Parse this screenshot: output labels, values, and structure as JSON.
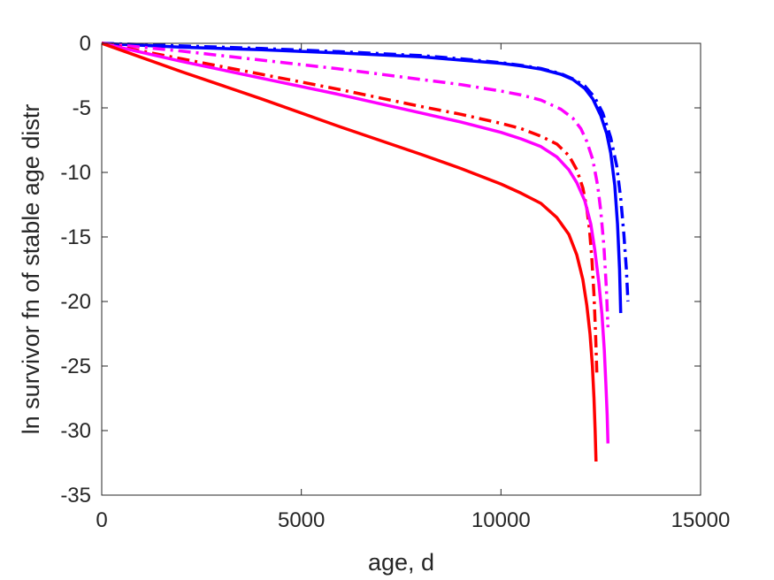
{
  "chart_data": {
    "type": "line",
    "title": "",
    "xlabel": "age, d",
    "ylabel": "ln survivor fn of stable age distr",
    "xlim": [
      0,
      15000
    ],
    "ylim": [
      -35,
      0
    ],
    "xticks": [
      0,
      5000,
      10000,
      15000
    ],
    "yticks": [
      0,
      -5,
      -10,
      -15,
      -20,
      -25,
      -30,
      -35
    ],
    "grid": false,
    "legend": "none",
    "series": [
      {
        "color": "#0000ff",
        "dash": "solid",
        "x": [
          0,
          2000,
          4000,
          6000,
          8000,
          9000,
          10000,
          10500,
          11000,
          11500,
          11800,
          12100,
          12300,
          12500,
          12650,
          12750,
          12850,
          12920,
          12970,
          13000
        ],
        "y": [
          0,
          -0.3,
          -0.5,
          -0.75,
          -1.05,
          -1.3,
          -1.55,
          -1.75,
          -2.0,
          -2.4,
          -2.8,
          -3.5,
          -4.3,
          -5.6,
          -7.0,
          -8.5,
          -11.0,
          -14.0,
          -17.5,
          -20.9
        ]
      },
      {
        "color": "#0000ff",
        "dash": "dashdot",
        "x": [
          0,
          2000,
          4000,
          6000,
          8000,
          9000,
          10000,
          10500,
          11000,
          11500,
          11800,
          12100,
          12350,
          12550,
          12750,
          12900,
          13000,
          13080,
          13140,
          13180
        ],
        "y": [
          0,
          -0.2,
          -0.4,
          -0.65,
          -0.95,
          -1.2,
          -1.5,
          -1.7,
          -1.95,
          -2.35,
          -2.75,
          -3.3,
          -4.2,
          -5.4,
          -7.3,
          -9.5,
          -12.0,
          -14.8,
          -17.5,
          -20.0
        ]
      },
      {
        "color": "#ff00ff",
        "dash": "dashdot",
        "x": [
          0,
          2000,
          4000,
          6000,
          8000,
          9000,
          10000,
          10500,
          11000,
          11500,
          11800,
          12000,
          12150,
          12300,
          12420,
          12500,
          12580,
          12640,
          12680
        ],
        "y": [
          0,
          -0.6,
          -1.3,
          -2.0,
          -2.8,
          -3.2,
          -3.7,
          -4.0,
          -4.4,
          -5.1,
          -5.8,
          -6.6,
          -7.6,
          -9.0,
          -11.0,
          -13.0,
          -15.8,
          -19.0,
          -22.0
        ]
      },
      {
        "color": "#ff0000",
        "dash": "dashdot",
        "x": [
          0,
          2000,
          4000,
          6000,
          8000,
          9000,
          10000,
          10500,
          11000,
          11400,
          11700,
          11900,
          12050,
          12150,
          12220,
          12280,
          12330,
          12370,
          12400
        ],
        "y": [
          0,
          -1.2,
          -2.4,
          -3.6,
          -4.9,
          -5.5,
          -6.2,
          -6.6,
          -7.2,
          -7.8,
          -8.7,
          -9.8,
          -11.2,
          -12.8,
          -14.5,
          -16.8,
          -19.5,
          -22.5,
          -25.5
        ]
      },
      {
        "color": "#ff00ff",
        "dash": "solid",
        "x": [
          0,
          2000,
          4000,
          6000,
          8000,
          9000,
          10000,
          10500,
          11000,
          11400,
          11700,
          11900,
          12100,
          12250,
          12350,
          12450,
          12530,
          12590,
          12630,
          12660,
          12680
        ],
        "y": [
          0,
          -1.4,
          -2.7,
          -4.0,
          -5.4,
          -6.1,
          -6.9,
          -7.4,
          -8.0,
          -8.8,
          -9.8,
          -10.8,
          -12.2,
          -14.0,
          -16.0,
          -18.5,
          -21.0,
          -23.8,
          -26.5,
          -28.8,
          -31.0
        ]
      },
      {
        "color": "#ff0000",
        "dash": "solid",
        "x": [
          0,
          2000,
          4000,
          6000,
          8000,
          9000,
          10000,
          10500,
          11000,
          11400,
          11700,
          11900,
          12050,
          12150,
          12230,
          12290,
          12330,
          12360,
          12380
        ],
        "y": [
          0,
          -2.2,
          -4.3,
          -6.5,
          -8.6,
          -9.7,
          -10.9,
          -11.6,
          -12.4,
          -13.5,
          -14.8,
          -16.4,
          -18.3,
          -20.3,
          -22.5,
          -25.0,
          -27.5,
          -30.0,
          -32.4
        ]
      }
    ]
  }
}
